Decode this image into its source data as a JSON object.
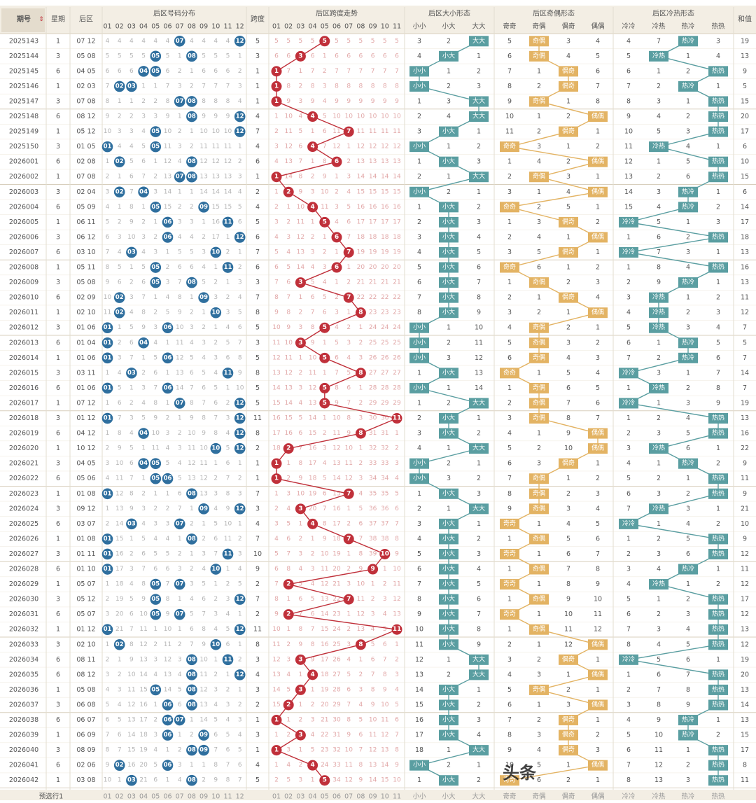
{
  "headers": {
    "issue": "期号",
    "sort_icon": "sort-icon",
    "weekday": "星期",
    "back": "后区",
    "dist": "后区号码分布",
    "span": "跨度",
    "span_trend": "后区跨度走势",
    "size": "后区大小形态",
    "parity": "后区奇偶形态",
    "hot": "后区冷热形态",
    "sum": "和值"
  },
  "num_labels": [
    "01",
    "02",
    "03",
    "04",
    "05",
    "06",
    "07",
    "08",
    "09",
    "10",
    "11",
    "12"
  ],
  "span_labels": [
    "01",
    "02",
    "03",
    "04",
    "05",
    "06",
    "07",
    "08",
    "09",
    "10",
    "11"
  ],
  "size_labels": [
    "小小",
    "小大",
    "大大"
  ],
  "parity_labels": [
    "奇奇",
    "奇偶",
    "偶奇",
    "偶偶"
  ],
  "hot_labels": [
    "冷冷",
    "冷热",
    "热冷",
    "热热"
  ],
  "footer_label": "预选行1",
  "watermark": "头条",
  "colors": {
    "blue": "#2f6f9e",
    "red": "#c0303a",
    "teal": "#5a9ea1",
    "gold": "#e3b363",
    "text": "#555555",
    "miss": "#b5b5b5",
    "missred": "#e2a8a8"
  },
  "chart_data": {
    "type": "table",
    "rows": [
      {
        "issue": "2025143",
        "wd": "1",
        "back": "07 12",
        "span": 5,
        "size": 2,
        "parity": 1,
        "hot": 2,
        "sum": 19
      },
      {
        "issue": "2025144",
        "wd": "3",
        "back": "05 08",
        "span": 3,
        "size": 1,
        "parity": 1,
        "hot": 1,
        "sum": 13
      },
      {
        "issue": "2025145",
        "wd": "6",
        "back": "04 05",
        "span": 1,
        "size": 0,
        "parity": 2,
        "hot": 3,
        "sum": 9
      },
      {
        "issue": "2025146",
        "wd": "1",
        "back": "02 03",
        "span": 1,
        "size": 0,
        "parity": 2,
        "hot": 2,
        "sum": 5
      },
      {
        "issue": "2025147",
        "wd": "3",
        "back": "07 08",
        "span": 1,
        "size": 2,
        "parity": 1,
        "hot": 3,
        "sum": 15
      },
      {
        "issue": "2025148",
        "wd": "6",
        "back": "08 12",
        "span": 4,
        "size": 2,
        "parity": 3,
        "hot": 3,
        "sum": 20
      },
      {
        "issue": "2025149",
        "wd": "1",
        "back": "05 12",
        "span": 7,
        "size": 1,
        "parity": 2,
        "hot": 3,
        "sum": 17
      },
      {
        "issue": "2025150",
        "wd": "3",
        "back": "01 05",
        "span": 4,
        "size": 0,
        "parity": 0,
        "hot": 1,
        "sum": 6
      },
      {
        "issue": "2026001",
        "wd": "6",
        "back": "02 08",
        "span": 6,
        "size": 1,
        "parity": 3,
        "hot": 3,
        "sum": 10
      },
      {
        "issue": "2026002",
        "wd": "1",
        "back": "07 08",
        "span": 1,
        "size": 2,
        "parity": 1,
        "hot": 3,
        "sum": 15
      },
      {
        "issue": "2026003",
        "wd": "3",
        "back": "02 04",
        "span": 2,
        "size": 0,
        "parity": 3,
        "hot": 2,
        "sum": 6
      },
      {
        "issue": "2026004",
        "wd": "6",
        "back": "05 09",
        "span": 4,
        "size": 1,
        "parity": 0,
        "hot": 2,
        "sum": 14
      },
      {
        "issue": "2026005",
        "wd": "1",
        "back": "06 11",
        "span": 5,
        "size": 1,
        "parity": 2,
        "hot": 0,
        "sum": 17
      },
      {
        "issue": "2026006",
        "wd": "3",
        "back": "06 12",
        "span": 6,
        "size": 1,
        "parity": 3,
        "hot": 3,
        "sum": 18
      },
      {
        "issue": "2026007",
        "wd": "6",
        "back": "03 10",
        "span": 7,
        "size": 1,
        "parity": 2,
        "hot": 0,
        "sum": 13
      },
      {
        "issue": "2026008",
        "wd": "1",
        "back": "05 11",
        "span": 6,
        "size": 1,
        "parity": 0,
        "hot": 3,
        "sum": 16
      },
      {
        "issue": "2026009",
        "wd": "3",
        "back": "05 08",
        "span": 3,
        "size": 1,
        "parity": 1,
        "hot": 2,
        "sum": 13
      },
      {
        "issue": "2026010",
        "wd": "6",
        "back": "02 09",
        "span": 7,
        "size": 1,
        "parity": 2,
        "hot": 1,
        "sum": 11
      },
      {
        "issue": "2026011",
        "wd": "1",
        "back": "02 10",
        "span": 8,
        "size": 1,
        "parity": 3,
        "hot": 1,
        "sum": 12
      },
      {
        "issue": "2026012",
        "wd": "3",
        "back": "01 06",
        "span": 5,
        "size": 0,
        "parity": 1,
        "hot": 1,
        "sum": 7
      },
      {
        "issue": "2026013",
        "wd": "6",
        "back": "01 04",
        "span": 3,
        "size": 0,
        "parity": 1,
        "hot": 2,
        "sum": 5
      },
      {
        "issue": "2026014",
        "wd": "1",
        "back": "01 06",
        "span": 5,
        "size": 0,
        "parity": 1,
        "hot": 2,
        "sum": 7
      },
      {
        "issue": "2026015",
        "wd": "3",
        "back": "03 11",
        "span": 8,
        "size": 1,
        "parity": 0,
        "hot": 0,
        "sum": 14
      },
      {
        "issue": "2026016",
        "wd": "6",
        "back": "01 06",
        "span": 5,
        "size": 0,
        "parity": 1,
        "hot": 1,
        "sum": 7
      },
      {
        "issue": "2026017",
        "wd": "1",
        "back": "07 12",
        "span": 5,
        "size": 2,
        "parity": 1,
        "hot": 0,
        "sum": 19
      },
      {
        "issue": "2026018",
        "wd": "3",
        "back": "01 12",
        "span": 11,
        "size": 1,
        "parity": 1,
        "hot": 3,
        "sum": 13
      },
      {
        "issue": "2026019",
        "wd": "6",
        "back": "04 12",
        "span": 8,
        "size": 1,
        "parity": 3,
        "hot": 3,
        "sum": 16
      },
      {
        "issue": "2026020",
        "wd": "1",
        "back": "10 12",
        "span": 2,
        "size": 2,
        "parity": 3,
        "hot": 1,
        "sum": 22
      },
      {
        "issue": "2026021",
        "wd": "3",
        "back": "04 05",
        "span": 1,
        "size": 0,
        "parity": 2,
        "hot": 2,
        "sum": 9
      },
      {
        "issue": "2026022",
        "wd": "6",
        "back": "05 06",
        "span": 1,
        "size": 0,
        "parity": 1,
        "hot": 3,
        "sum": 11
      },
      {
        "issue": "2026023",
        "wd": "1",
        "back": "01 08",
        "span": 7,
        "size": 1,
        "parity": 1,
        "hot": 3,
        "sum": 9
      },
      {
        "issue": "2026024",
        "wd": "3",
        "back": "09 12",
        "span": 3,
        "size": 2,
        "parity": 1,
        "hot": 1,
        "sum": 21
      },
      {
        "issue": "2026025",
        "wd": "6",
        "back": "03 07",
        "span": 4,
        "size": 1,
        "parity": 0,
        "hot": 0,
        "sum": 10
      },
      {
        "issue": "2026026",
        "wd": "1",
        "back": "01 08",
        "span": 7,
        "size": 1,
        "parity": 1,
        "hot": 3,
        "sum": 9
      },
      {
        "issue": "2026027",
        "wd": "3",
        "back": "01 11",
        "span": 10,
        "size": 1,
        "parity": 0,
        "hot": 3,
        "sum": 12
      },
      {
        "issue": "2026028",
        "wd": "6",
        "back": "01 10",
        "span": 9,
        "size": 1,
        "parity": 1,
        "hot": 2,
        "sum": 11
      },
      {
        "issue": "2026029",
        "wd": "1",
        "back": "05 07",
        "span": 2,
        "size": 1,
        "parity": 0,
        "hot": 1,
        "sum": 12
      },
      {
        "issue": "2026030",
        "wd": "3",
        "back": "05 12",
        "span": 7,
        "size": 1,
        "parity": 1,
        "hot": 3,
        "sum": 17
      },
      {
        "issue": "2026031",
        "wd": "6",
        "back": "05 07",
        "span": 2,
        "size": 1,
        "parity": 0,
        "hot": 3,
        "sum": 12
      },
      {
        "issue": "2026032",
        "wd": "1",
        "back": "01 12",
        "span": 11,
        "size": 1,
        "parity": 1,
        "hot": 3,
        "sum": 13
      },
      {
        "issue": "2026033",
        "wd": "3",
        "back": "02 10",
        "span": 8,
        "size": 1,
        "parity": 3,
        "hot": 3,
        "sum": 12
      },
      {
        "issue": "2026034",
        "wd": "6",
        "back": "08 11",
        "span": 3,
        "size": 2,
        "parity": 2,
        "hot": 0,
        "sum": 19
      },
      {
        "issue": "2026035",
        "wd": "6",
        "back": "08 12",
        "span": 4,
        "size": 2,
        "parity": 3,
        "hot": 3,
        "sum": 20
      },
      {
        "issue": "2026036",
        "wd": "1",
        "back": "05 08",
        "span": 3,
        "size": 1,
        "parity": 1,
        "hot": 3,
        "sum": 13
      },
      {
        "issue": "2026037",
        "wd": "3",
        "back": "06 08",
        "span": 2,
        "size": 1,
        "parity": 3,
        "hot": 3,
        "sum": 14
      },
      {
        "issue": "2026038",
        "wd": "6",
        "back": "06 07",
        "span": 1,
        "size": 1,
        "parity": 2,
        "hot": 2,
        "sum": 13
      },
      {
        "issue": "2026039",
        "wd": "1",
        "back": "06 09",
        "span": 3,
        "size": 1,
        "parity": 2,
        "hot": 2,
        "sum": 15
      },
      {
        "issue": "2026040",
        "wd": "3",
        "back": "08 09",
        "span": 1,
        "size": 2,
        "parity": 2,
        "hot": 3,
        "sum": 17
      },
      {
        "issue": "2026041",
        "wd": "6",
        "back": "02 06",
        "span": 4,
        "size": 0,
        "parity": 3,
        "hot": 3,
        "sum": 8
      },
      {
        "issue": "2026042",
        "wd": "1",
        "back": "03 08",
        "span": 5,
        "size": 1,
        "parity": 0,
        "hot": 3,
        "sum": 11
      }
    ]
  }
}
